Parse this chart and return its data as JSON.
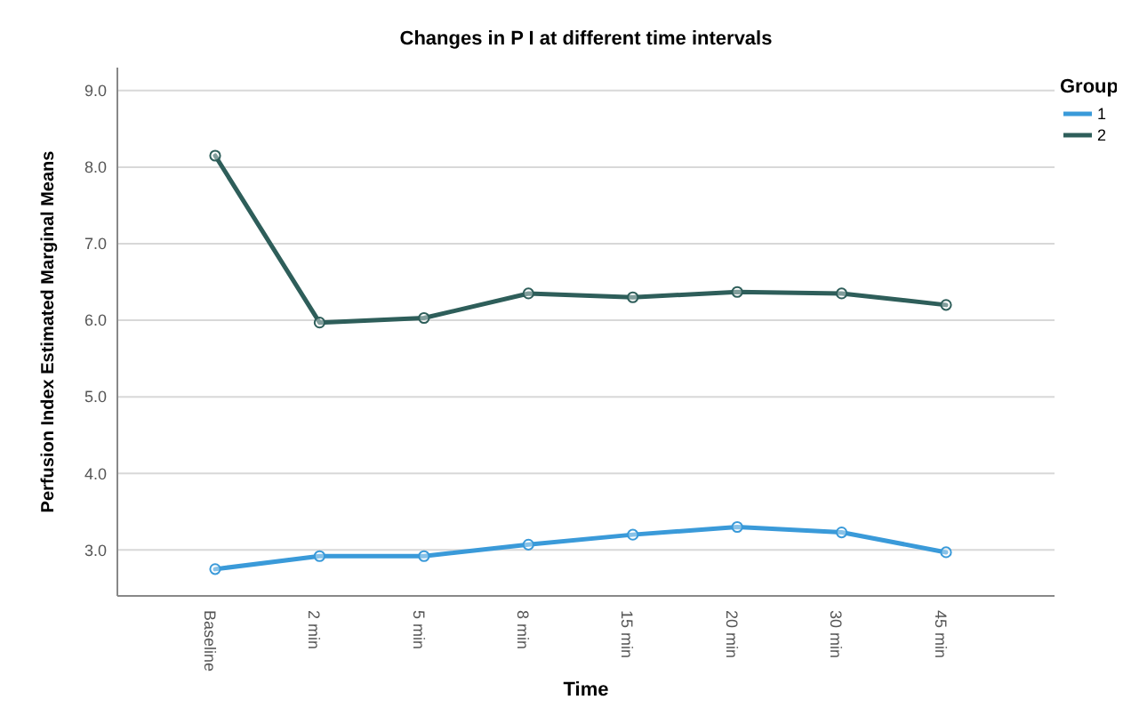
{
  "chart_data": {
    "type": "line",
    "title": "Changes in P I  at different time intervals",
    "xlabel": "Time",
    "ylabel": "Perfusion Index Estimated Marginal Means",
    "legend_title": "Group",
    "categories": [
      "Baseline",
      "2 min",
      "5 min",
      "8 min",
      "15 min",
      "20 min",
      "30 min",
      "45 min"
    ],
    "series": [
      {
        "name": "1",
        "color": "#3a9ad9",
        "values": [
          2.75,
          2.92,
          2.92,
          3.07,
          3.2,
          3.3,
          3.23,
          2.97
        ]
      },
      {
        "name": "2",
        "color": "#2e5e5a",
        "values": [
          8.15,
          5.97,
          6.03,
          6.35,
          6.3,
          6.37,
          6.35,
          6.2
        ]
      }
    ],
    "ylim": [
      2.4,
      9.3
    ],
    "yticks": [
      {
        "value": 3,
        "label": "3.0"
      },
      {
        "value": 4,
        "label": "4.0"
      },
      {
        "value": 5,
        "label": "5.0"
      },
      {
        "value": 6,
        "label": "6.0"
      },
      {
        "value": 7,
        "label": "7.0"
      },
      {
        "value": 8,
        "label": "8.0"
      },
      {
        "value": 9,
        "label": "9.0"
      }
    ],
    "grid": "y",
    "legend": "top right",
    "marker": "circle",
    "line_style": "solid"
  }
}
